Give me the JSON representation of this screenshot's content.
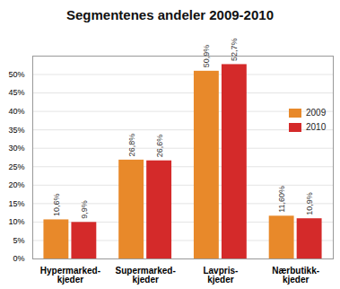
{
  "chart_data": {
    "type": "bar",
    "title": "Segmentenes andeler 2009-2010",
    "categories": [
      "Hypermarked-\nkjeder",
      "Supermarked-\nkjeder",
      "Lavpris-\nkjeder",
      "Nærbutikk-\nkjeder"
    ],
    "series": [
      {
        "name": "2009",
        "color": "#e8892a",
        "values": [
          10.6,
          26.8,
          50.9,
          11.6
        ],
        "value_labels": [
          "10,6%",
          "26,8%",
          "50,9%",
          "11,60%"
        ]
      },
      {
        "name": "2010",
        "color": "#d42a2a",
        "values": [
          9.9,
          26.6,
          52.7,
          10.9
        ],
        "value_labels": [
          "9,9%",
          "26,6%",
          "52,7%",
          "10,9%"
        ]
      }
    ],
    "ylim": [
      0,
      55
    ],
    "yticks": [
      {
        "value": 0,
        "label": "0%"
      },
      {
        "value": 5,
        "label": "5%"
      },
      {
        "value": 10,
        "label": "10%"
      },
      {
        "value": 15,
        "label": "15%"
      },
      {
        "value": 20,
        "label": "20%"
      },
      {
        "value": 25,
        "label": "25%"
      },
      {
        "value": 30,
        "label": "30%"
      },
      {
        "value": 35,
        "label": "35%"
      },
      {
        "value": 40,
        "label": "40%"
      },
      {
        "value": 45,
        "label": "45%"
      },
      {
        "value": 50,
        "label": "50%"
      }
    ],
    "grid": true,
    "data_labels": true,
    "legend": "right"
  }
}
